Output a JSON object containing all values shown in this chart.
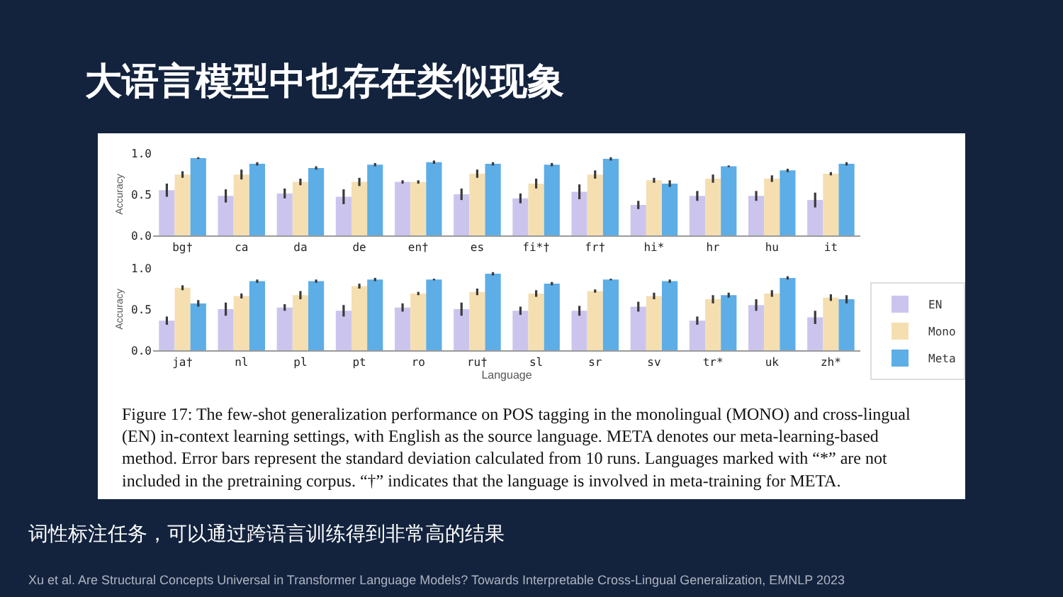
{
  "chart_data": [
    {
      "type": "bar",
      "title": "大语言模型中也存在类似现象",
      "ylabel": "Accuracy",
      "categories": [
        "bg†",
        "ca",
        "da",
        "de",
        "en†",
        "es",
        "fi*†",
        "fr†",
        "hi*",
        "hr",
        "hu",
        "it"
      ],
      "series": [
        {
          "color": "#cbc5ee",
          "values": [
            0.55,
            0.48,
            0.51,
            0.47,
            0.65,
            0.5,
            0.45,
            0.53,
            0.37,
            0.48,
            0.48,
            0.43
          ],
          "errors": [
            0.08,
            0.08,
            0.06,
            0.09,
            0.02,
            0.07,
            0.06,
            0.09,
            0.05,
            0.06,
            0.06,
            0.09
          ]
        },
        {
          "color": "#f5dfb1",
          "values": [
            0.74,
            0.74,
            0.65,
            0.65,
            0.65,
            0.75,
            0.63,
            0.74,
            0.67,
            0.69,
            0.69,
            0.75
          ],
          "errors": [
            0.04,
            0.06,
            0.04,
            0.05,
            0.02,
            0.05,
            0.06,
            0.05,
            0.03,
            0.05,
            0.04,
            0.02
          ]
        },
        {
          "color": "#5dade6",
          "values": [
            0.94,
            0.87,
            0.82,
            0.86,
            0.89,
            0.87,
            0.86,
            0.93,
            0.63,
            0.84,
            0.79,
            0.87
          ],
          "errors": [
            0.01,
            0.02,
            0.02,
            0.02,
            0.02,
            0.02,
            0.02,
            0.02,
            0.04,
            0.01,
            0.02,
            0.02
          ]
        }
      ],
      "ylim": [
        0,
        1.0
      ],
      "yticks": [
        {
          "value": 0,
          "label": "0.0"
        },
        {
          "value": 0.5,
          "label": "0.5"
        },
        {
          "value": 1.0,
          "label": "1.0"
        }
      ]
    },
    {
      "type": "bar",
      "xlabel": "Language",
      "ylabel": "Accuracy",
      "categories": [
        "ja†",
        "nl",
        "pl",
        "pt",
        "ro",
        "ru†",
        "sl",
        "sr",
        "sv",
        "tr*",
        "uk",
        "zh*"
      ],
      "series": [
        {
          "name": "EN",
          "color": "#cbc5ee",
          "values": [
            0.36,
            0.5,
            0.52,
            0.48,
            0.52,
            0.5,
            0.48,
            0.48,
            0.53,
            0.36,
            0.55,
            0.4
          ],
          "errors": [
            0.05,
            0.08,
            0.04,
            0.07,
            0.05,
            0.08,
            0.05,
            0.06,
            0.06,
            0.05,
            0.07,
            0.08
          ]
        },
        {
          "name": "Mono",
          "color": "#f5dfb1",
          "values": [
            0.76,
            0.66,
            0.67,
            0.78,
            0.69,
            0.71,
            0.69,
            0.72,
            0.66,
            0.62,
            0.69,
            0.64
          ],
          "errors": [
            0.03,
            0.03,
            0.05,
            0.03,
            0.02,
            0.04,
            0.04,
            0.02,
            0.04,
            0.05,
            0.04,
            0.04
          ]
        },
        {
          "name": "Meta",
          "color": "#5dade6",
          "values": [
            0.57,
            0.84,
            0.84,
            0.86,
            0.86,
            0.93,
            0.81,
            0.86,
            0.84,
            0.67,
            0.88,
            0.62
          ],
          "errors": [
            0.04,
            0.02,
            0.02,
            0.02,
            0.01,
            0.02,
            0.02,
            0.01,
            0.02,
            0.03,
            0.02,
            0.05
          ]
        }
      ],
      "ylim": [
        0,
        1.0
      ],
      "yticks": [
        {
          "value": 0,
          "label": "0.0"
        },
        {
          "value": 0.5,
          "label": "0.5"
        },
        {
          "value": 1.0,
          "label": "1.0"
        }
      ],
      "legend": "right",
      "annotations": [
        "Figure 17: The few-shot generalization performance on POS tagging in the monolingual (MONO) and cross-lingual (EN) in-context learning settings, with English as the source language. META denotes our meta-learning-based method. Error bars represent the standard deviation calculated from 10 runs. Languages marked with “*” are not included in the pretraining corpus. “†” indicates that the language is involved in meta-training for META.",
        "词性标注任务，可以通过跨语言训练得到非常高的结果",
        "Xu et al. Are Structural Concepts Universal in Transformer Language Models? Towards Interpretable Cross-Lingual Generalization, EMNLP 2023"
      ]
    }
  ]
}
